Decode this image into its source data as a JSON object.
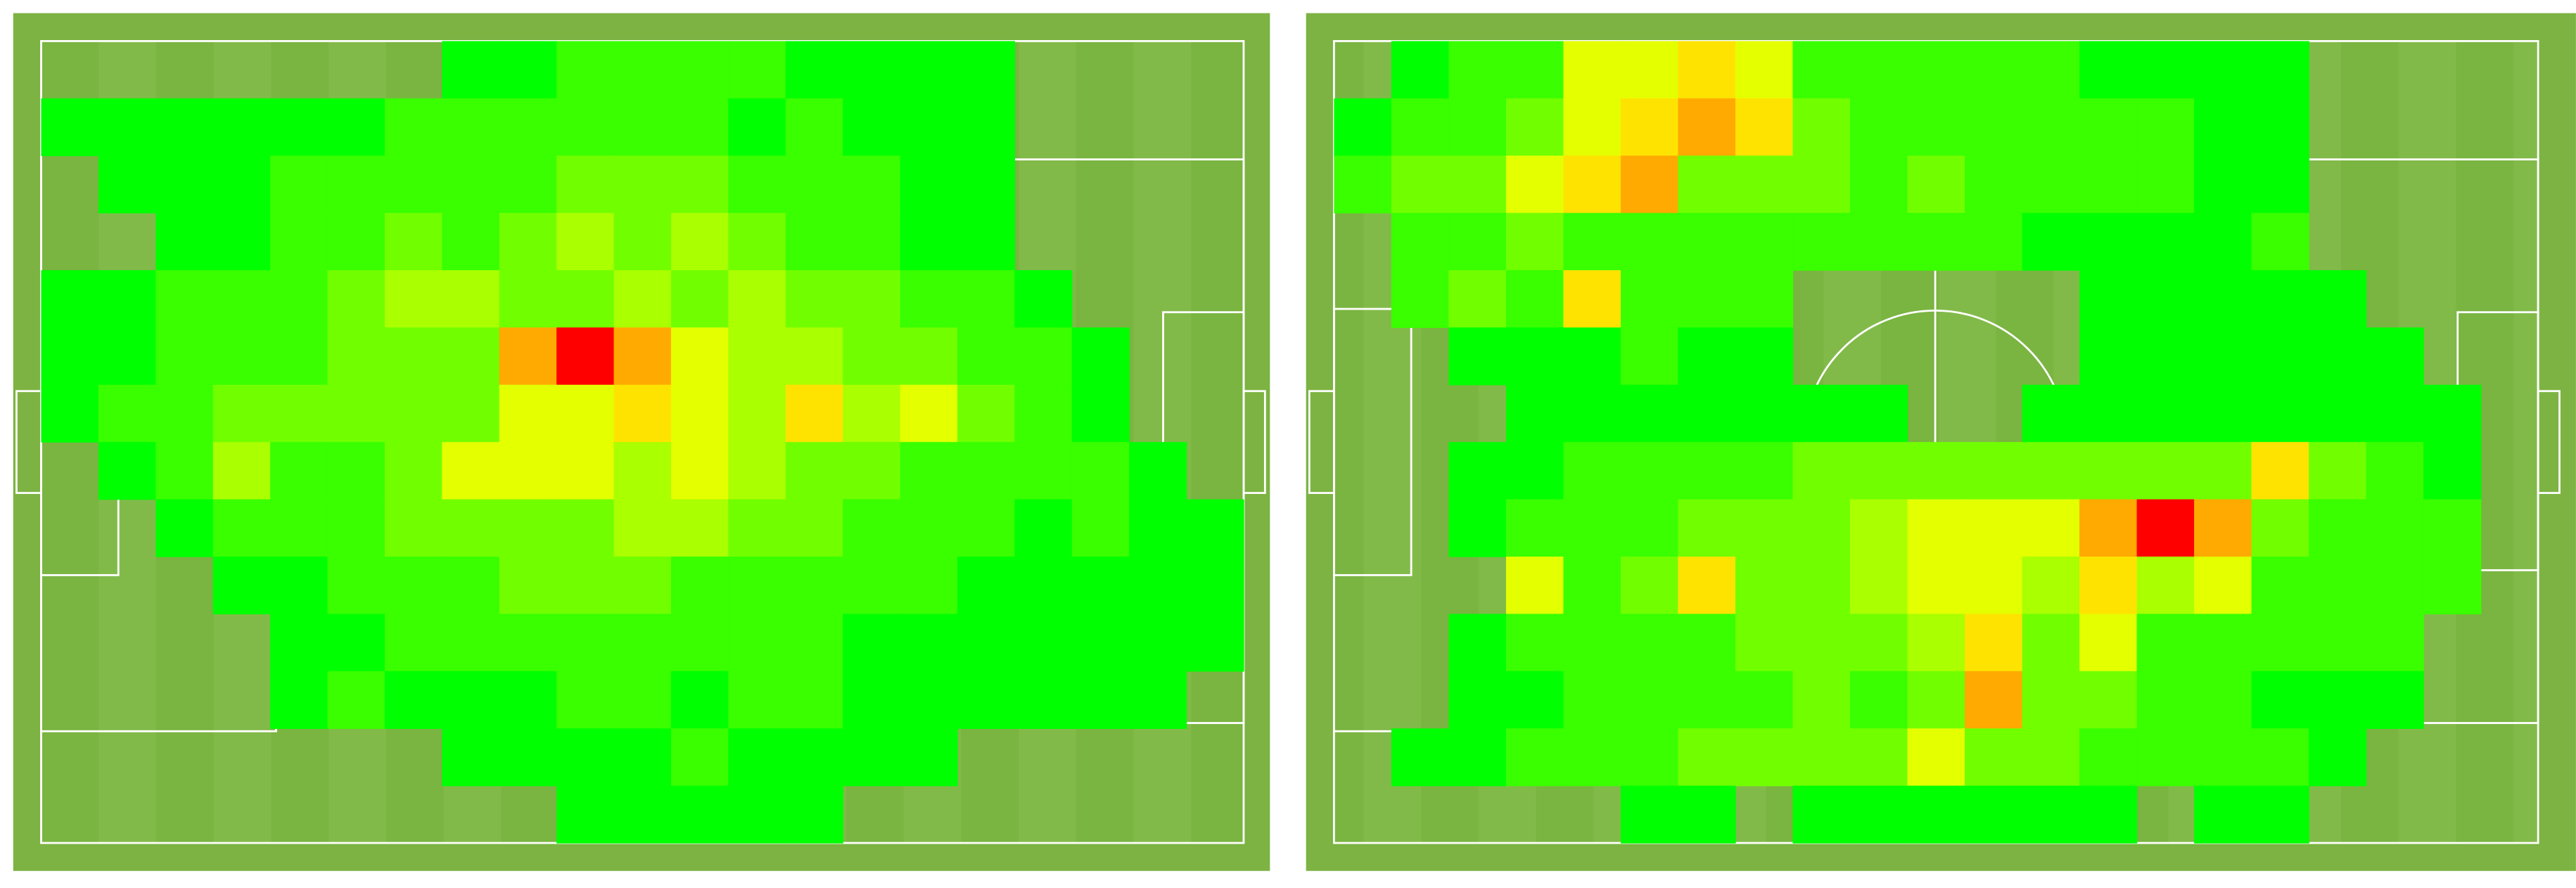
{
  "chart_data": [
    {
      "type": "heatmap",
      "zlim": [
        1,
        10
      ],
      "colors": [
        "#00ff00",
        "#ffff00",
        "#ff0000"
      ],
      "cells": [
        [
          null,
          null,
          null,
          null,
          null,
          null,
          null,
          1,
          1,
          2,
          2,
          2,
          2,
          1,
          1,
          1,
          1,
          null,
          null,
          null,
          null
        ],
        [
          1,
          1,
          1,
          1,
          1,
          1,
          2,
          2,
          2,
          2,
          2,
          2,
          1,
          2,
          1,
          1,
          1,
          null,
          null,
          null,
          null
        ],
        [
          null,
          1,
          1,
          1,
          2,
          2,
          2,
          2,
          2,
          3,
          3,
          3,
          2,
          2,
          2,
          1,
          1,
          null,
          null,
          null,
          null
        ],
        [
          null,
          null,
          1,
          1,
          2,
          2,
          3,
          2,
          3,
          4,
          3,
          4,
          3,
          2,
          2,
          1,
          1,
          null,
          null,
          null,
          null
        ],
        [
          1,
          1,
          2,
          2,
          2,
          3,
          4,
          4,
          3,
          3,
          4,
          3,
          4,
          3,
          3,
          2,
          2,
          1,
          null,
          null,
          null
        ],
        [
          1,
          1,
          2,
          2,
          2,
          3,
          3,
          3,
          7,
          10,
          7,
          5,
          4,
          4,
          3,
          3,
          2,
          2,
          1,
          null,
          null
        ],
        [
          1,
          2,
          2,
          3,
          3,
          3,
          3,
          3,
          5,
          5,
          6,
          5,
          4,
          6,
          4,
          5,
          3,
          2,
          1,
          null,
          null
        ],
        [
          null,
          1,
          2,
          4,
          2,
          2,
          3,
          5,
          5,
          5,
          4,
          5,
          4,
          3,
          3,
          2,
          2,
          2,
          2,
          1,
          null
        ],
        [
          null,
          null,
          1,
          2,
          2,
          2,
          3,
          3,
          3,
          3,
          4,
          4,
          3,
          3,
          2,
          2,
          2,
          1,
          2,
          1,
          1
        ],
        [
          null,
          null,
          null,
          1,
          1,
          2,
          2,
          2,
          3,
          3,
          3,
          2,
          2,
          2,
          2,
          2,
          1,
          1,
          1,
          1,
          1
        ],
        [
          null,
          null,
          null,
          null,
          1,
          1,
          2,
          2,
          2,
          2,
          2,
          2,
          2,
          2,
          1,
          1,
          1,
          1,
          1,
          1,
          1
        ],
        [
          null,
          null,
          null,
          null,
          1,
          2,
          1,
          1,
          1,
          2,
          2,
          1,
          2,
          2,
          1,
          1,
          1,
          1,
          1,
          1,
          null
        ],
        [
          null,
          null,
          null,
          null,
          null,
          null,
          null,
          1,
          1,
          1,
          1,
          2,
          1,
          1,
          1,
          1,
          null,
          null,
          null,
          null,
          null
        ],
        [
          null,
          null,
          null,
          null,
          null,
          null,
          null,
          null,
          null,
          1,
          1,
          1,
          1,
          1,
          null,
          null,
          null,
          null,
          null,
          null,
          null
        ]
      ]
    },
    {
      "type": "heatmap",
      "zlim": [
        1,
        10
      ],
      "colors": [
        "#00ff00",
        "#ffff00",
        "#ff0000"
      ],
      "cells": [
        [
          null,
          1,
          2,
          2,
          5,
          5,
          6,
          5,
          2,
          2,
          2,
          2,
          2,
          1,
          1,
          1,
          1,
          null,
          null,
          null,
          null
        ],
        [
          1,
          2,
          2,
          3,
          5,
          6,
          7,
          6,
          3,
          2,
          2,
          2,
          2,
          2,
          2,
          1,
          1,
          null,
          null,
          null,
          null
        ],
        [
          2,
          3,
          3,
          5,
          6,
          7,
          3,
          3,
          3,
          2,
          3,
          2,
          2,
          2,
          2,
          1,
          1,
          null,
          null,
          null,
          null
        ],
        [
          null,
          2,
          2,
          3,
          2,
          2,
          2,
          2,
          2,
          2,
          2,
          2,
          1,
          1,
          1,
          1,
          2,
          null,
          null,
          null,
          null
        ],
        [
          null,
          2,
          3,
          2,
          6,
          2,
          2,
          2,
          null,
          null,
          null,
          null,
          null,
          1,
          1,
          1,
          1,
          1,
          null,
          null,
          null
        ],
        [
          null,
          null,
          1,
          1,
          1,
          2,
          1,
          1,
          null,
          null,
          null,
          null,
          null,
          1,
          1,
          1,
          1,
          1,
          1,
          null,
          null
        ],
        [
          null,
          null,
          null,
          1,
          1,
          1,
          1,
          1,
          1,
          1,
          null,
          null,
          1,
          1,
          1,
          1,
          1,
          1,
          1,
          1,
          null
        ],
        [
          null,
          null,
          1,
          1,
          2,
          2,
          2,
          2,
          3,
          3,
          3,
          3,
          3,
          3,
          3,
          3,
          6,
          3,
          2,
          1,
          null
        ],
        [
          null,
          null,
          1,
          2,
          2,
          2,
          3,
          3,
          3,
          4,
          5,
          5,
          5,
          7,
          10,
          7,
          3,
          2,
          2,
          2,
          null
        ],
        [
          null,
          null,
          null,
          5,
          2,
          3,
          6,
          3,
          3,
          4,
          5,
          5,
          4,
          6,
          4,
          5,
          2,
          2,
          2,
          2,
          null
        ],
        [
          null,
          null,
          1,
          2,
          2,
          2,
          2,
          3,
          3,
          3,
          4,
          6,
          3,
          5,
          2,
          2,
          2,
          2,
          2,
          null,
          null
        ],
        [
          null,
          null,
          1,
          1,
          2,
          2,
          2,
          2,
          3,
          2,
          3,
          7,
          3,
          3,
          2,
          2,
          1,
          1,
          1,
          null,
          null
        ],
        [
          null,
          1,
          1,
          2,
          2,
          2,
          3,
          3,
          3,
          3,
          5,
          3,
          3,
          2,
          2,
          2,
          2,
          1,
          null,
          null,
          null
        ],
        [
          null,
          null,
          null,
          null,
          null,
          1,
          1,
          null,
          1,
          1,
          1,
          1,
          1,
          1,
          null,
          1,
          1,
          null,
          null,
          null,
          null
        ]
      ]
    }
  ]
}
